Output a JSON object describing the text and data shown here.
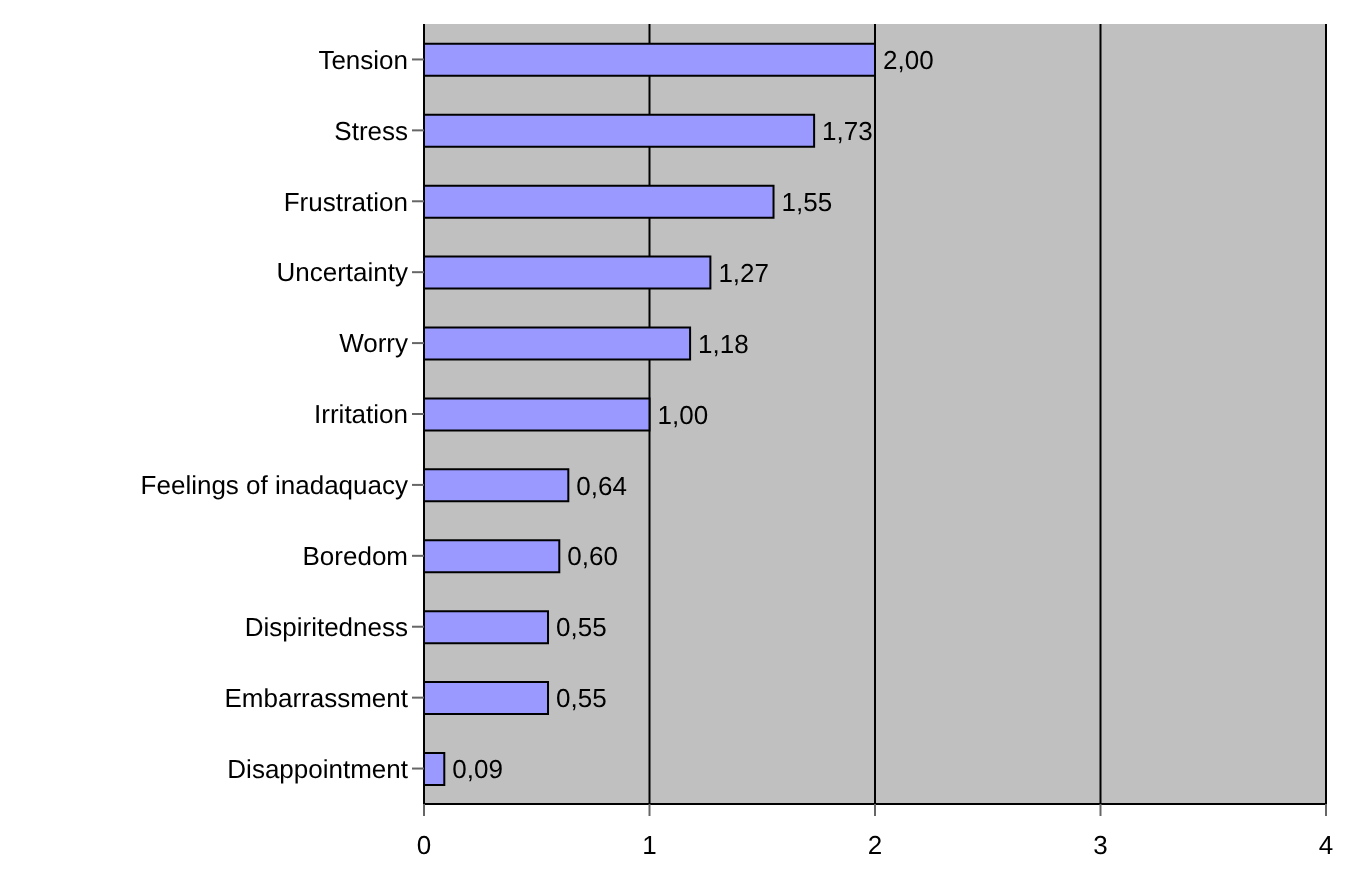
{
  "chart_data": {
    "type": "bar",
    "orientation": "horizontal",
    "categories": [
      "Tension",
      "Stress",
      "Frustration",
      "Uncertainty",
      "Worry",
      "Irritation",
      "Feelings of inadaquacy",
      "Boredom",
      "Dispiritedness",
      "Embarrassment",
      "Disappointment"
    ],
    "values": [
      2.0,
      1.73,
      1.55,
      1.27,
      1.18,
      1.0,
      0.64,
      0.6,
      0.55,
      0.55,
      0.09
    ],
    "value_labels": [
      "2,00",
      "1,73",
      "1,55",
      "1,27",
      "1,18",
      "1,00",
      "0,64",
      "0,60",
      "0,55",
      "0,55",
      "0,09"
    ],
    "color": "#9999ff",
    "xlim": [
      0,
      4
    ],
    "xticks": [
      0,
      1,
      2,
      3,
      4
    ],
    "grid": "x"
  }
}
